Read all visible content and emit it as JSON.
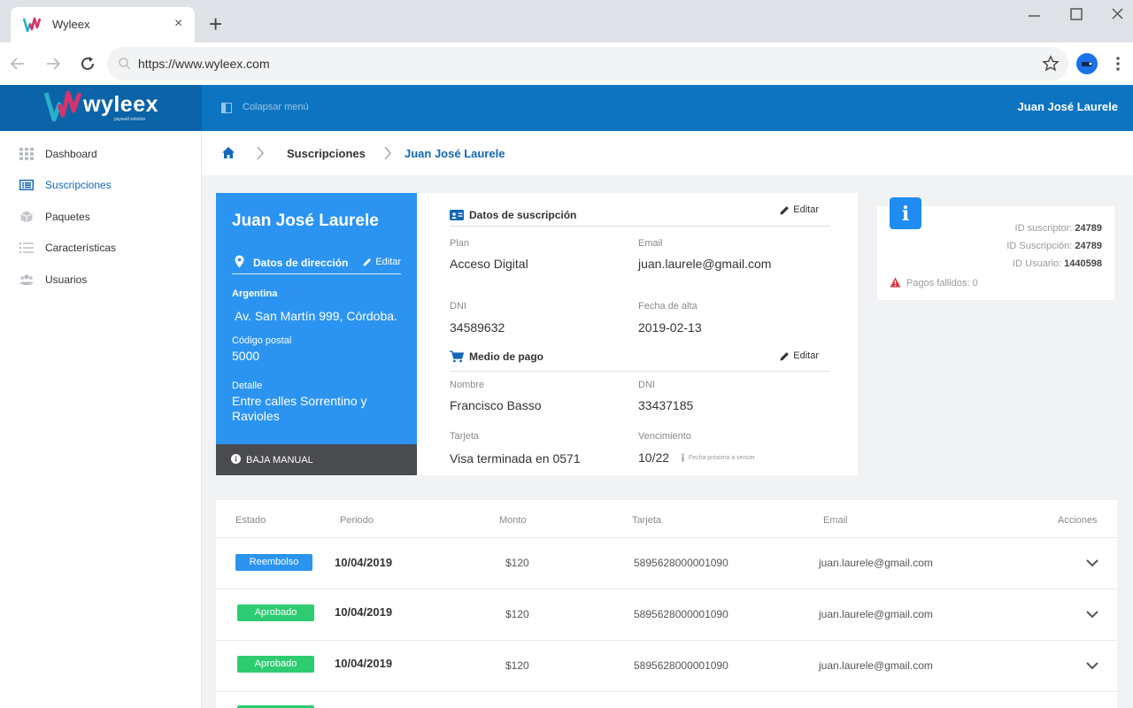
{
  "browser": {
    "tab_title": "Wyleex",
    "tab_close": "×",
    "new_tab": "+",
    "url": "https://www.wyleex.com"
  },
  "header": {
    "logo_text": "wyleex",
    "logo_subtext": "paywall solution",
    "collapse_label": "Colapsar menú",
    "user_name": "Juan José Laurele",
    "brand_color": "#0d74c1"
  },
  "sidebar": {
    "items": [
      {
        "label": "Dashboard",
        "icon": "grid-icon"
      },
      {
        "label": "Suscripciones",
        "icon": "list-card-icon",
        "active": true
      },
      {
        "label": "Paquetes",
        "icon": "box-icon"
      },
      {
        "label": "Características",
        "icon": "list-icon"
      },
      {
        "label": "Usuarios",
        "icon": "users-icon"
      }
    ]
  },
  "breadcrumb": {
    "items": [
      "Suscripciones",
      "Juan José Laurele"
    ]
  },
  "profile": {
    "name": "Juan José Laurele",
    "address_section_label": "Datos de dirección",
    "edit_label": "Editar",
    "country": "Argentina",
    "address": "Av. San Martín 999, Córdoba.",
    "postal_code_label": "Código postal",
    "postal_code": "5000",
    "detail_label": "Detalle",
    "detail": "Entre calles Sorrentino y Ravioles",
    "footer_action": "BAJA MANUAL",
    "card_color": "#2b94f1"
  },
  "subscription": {
    "section_label": "Datos de suscripción",
    "edit_label": "Editar",
    "plan_label": "Plan",
    "plan": "Acceso Digital",
    "email_label": "Email",
    "email": "juan.laurele@gmail.com",
    "dni_label": "DNI",
    "dni": "34589632",
    "signup_date_label": "Fecha de alta",
    "signup_date": "2019-02-13"
  },
  "payment_method": {
    "section_label": "Medio de pago",
    "edit_label": "Editar",
    "name_label": "Nombre",
    "name": "Francisco Basso",
    "dni_label": "DNI",
    "dni": "33437185",
    "card_label": "Tarjeta",
    "card": "Visa terminada en 0571",
    "expiry_label": "Vencimiento",
    "expiry": "10/22",
    "expiry_note": "Fecha próxima a vencer"
  },
  "info": {
    "subscriber_id_label": "ID suscriptor:",
    "subscriber_id": "24789",
    "subscription_id_label": "ID Suscripción:",
    "subscription_id": "24789",
    "user_id_label": "ID Usuario:",
    "user_id": "1440598",
    "failed_payments": "Pagos fallidos: 0"
  },
  "payments": {
    "columns": [
      "Estado",
      "Periodo",
      "Monto",
      "Tarjeta",
      "Email",
      "Acciones"
    ],
    "rows": [
      {
        "status": "Reembolso",
        "status_color": "#2b94f1",
        "period": "10/04/2019",
        "amount": "$120",
        "card": "5895628000001090",
        "email": "juan.laurele@gmail.com"
      },
      {
        "status": "Aprobado",
        "status_color": "#2ecc71",
        "period": "10/04/2019",
        "amount": "$120",
        "card": "5895628000001090",
        "email": "juan.laurele@gmail.com"
      },
      {
        "status": "Aprobado",
        "status_color": "#2ecc71",
        "period": "10/04/2019",
        "amount": "$120",
        "card": "5895628000001090",
        "email": "juan.laurele@gmail.com"
      },
      {
        "status": "",
        "status_color": "#2ecc71",
        "period": "",
        "amount": "",
        "card": "",
        "email": ""
      }
    ]
  }
}
